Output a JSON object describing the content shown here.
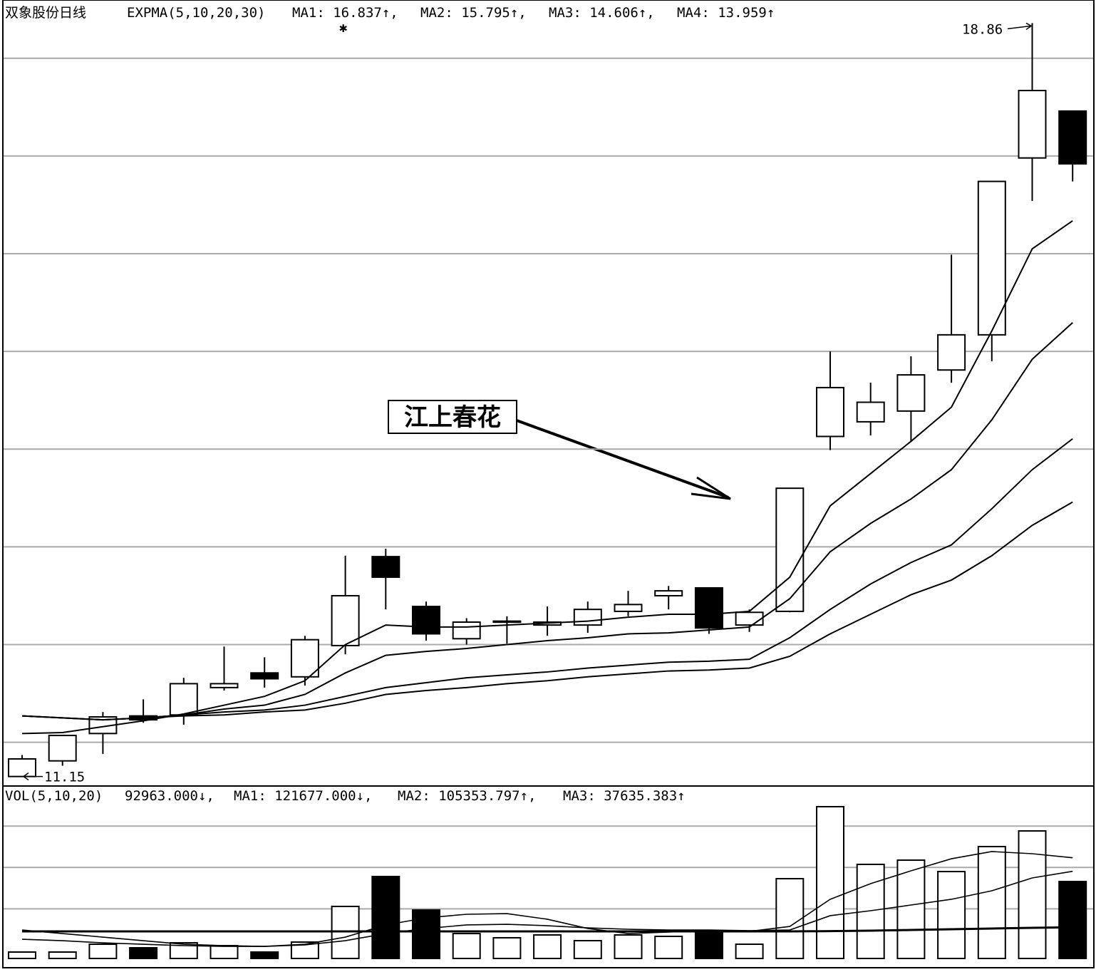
{
  "chart_data": [
    {
      "type": "candlestick",
      "title": "双象股份日线",
      "subtitle": "EXPMA(5,10,20,30)",
      "legend": [
        "MA1: 16.837↑,",
        "MA2: 15.795↑,",
        "MA3: 14.606↑,",
        "MA4: 13.959↑"
      ],
      "open": [
        11.15,
        11.31,
        11.59,
        11.77,
        11.78,
        12.06,
        12.21,
        12.17,
        12.49,
        13.4,
        12.89,
        12.56,
        12.73,
        12.7,
        12.7,
        12.84,
        13.0,
        13.08,
        12.7,
        12.84,
        14.63,
        14.78,
        14.89,
        15.31,
        15.67,
        17.48,
        17.96
      ],
      "high": [
        11.37,
        11.57,
        11.81,
        11.94,
        12.16,
        12.48,
        12.37,
        12.59,
        13.41,
        13.48,
        12.94,
        12.77,
        12.79,
        12.89,
        12.94,
        13.05,
        13.1,
        13.08,
        12.86,
        14.1,
        15.5,
        15.18,
        15.45,
        16.49,
        17.24,
        18.86,
        17.96
      ],
      "low": [
        11.15,
        11.26,
        11.38,
        11.7,
        11.68,
        12.03,
        12.06,
        12.08,
        12.4,
        12.86,
        12.54,
        12.5,
        12.51,
        12.59,
        12.62,
        12.79,
        12.86,
        12.61,
        12.63,
        12.83,
        14.49,
        14.64,
        14.58,
        15.18,
        15.4,
        17.04,
        17.24
      ],
      "close": [
        11.33,
        11.57,
        11.76,
        11.73,
        12.1,
        12.1,
        12.15,
        12.55,
        13.0,
        13.19,
        12.61,
        12.73,
        12.74,
        12.73,
        12.86,
        12.91,
        13.05,
        12.67,
        12.83,
        14.1,
        15.13,
        14.98,
        15.26,
        15.67,
        17.24,
        18.17,
        17.42
      ],
      "series": [
        {
          "values": [
            11.59,
            11.6,
            11.66,
            11.72,
            11.79,
            11.88,
            11.97,
            12.13,
            12.5,
            12.7,
            12.68,
            12.68,
            12.7,
            12.72,
            12.74,
            12.78,
            12.81,
            12.81,
            12.84,
            13.19,
            13.92,
            14.25,
            14.58,
            14.93,
            15.71,
            16.55,
            16.837
          ]
        },
        {
          "values": [
            11.77,
            11.75,
            11.73,
            11.75,
            11.78,
            11.84,
            11.88,
            11.99,
            12.21,
            12.39,
            12.43,
            12.46,
            12.5,
            12.54,
            12.57,
            12.61,
            12.62,
            12.65,
            12.68,
            12.97,
            13.45,
            13.74,
            13.99,
            14.29,
            14.8,
            15.42,
            15.795
          ]
        },
        {
          "values": [
            11.77,
            11.75,
            11.73,
            11.75,
            11.78,
            11.81,
            11.83,
            11.88,
            11.97,
            12.06,
            12.11,
            12.16,
            12.19,
            12.22,
            12.26,
            12.29,
            12.32,
            12.33,
            12.35,
            12.57,
            12.86,
            13.12,
            13.34,
            13.52,
            13.89,
            14.29,
            14.606
          ]
        },
        {
          "values": [
            11.77,
            11.75,
            11.73,
            11.75,
            11.77,
            11.78,
            11.81,
            11.83,
            11.9,
            11.99,
            12.03,
            12.06,
            12.1,
            12.13,
            12.17,
            12.2,
            12.23,
            12.24,
            12.26,
            12.38,
            12.61,
            12.81,
            13.01,
            13.16,
            13.41,
            13.72,
            13.959
          ]
        }
      ],
      "annotations": [
        {
          "text": "18.86",
          "value": 18.86
        },
        {
          "text": "11.15",
          "value": 11.15
        }
      ],
      "callout": "江上春花",
      "ylim": [
        11.06,
        19.06
      ],
      "ygrid": [
        11.5,
        12.5,
        13.5,
        14.5,
        15.5,
        16.5,
        17.5,
        18.5
      ]
    },
    {
      "type": "bar",
      "title": "VOL(5,10,20)",
      "legend": [
        "92963.000↓,",
        "MA1: 121677.000↓,",
        "MA2: 105353.797↑,",
        "MA3: 37635.383↑"
      ],
      "values": [
        7750,
        7750,
        17200,
        12900,
        18900,
        15500,
        7750,
        19800,
        62900,
        99000,
        58500,
        30100,
        25000,
        28400,
        21500,
        28400,
        26700,
        32700,
        17200,
        96400,
        183400,
        113700,
        118800,
        105000,
        135200,
        154100,
        92963
      ],
      "series": [
        {
          "values": [
            34400,
            30100,
            25800,
            21500,
            17200,
            15500,
            14600,
            17200,
            25800,
            40500,
            49100,
            53400,
            54200,
            47400,
            36200,
            30100,
            31900,
            33600,
            32700,
            38700,
            71500,
            90400,
            105900,
            120500,
            129200,
            126600,
            121677
          ]
        },
        {
          "values": [
            23200,
            21500,
            18900,
            17200,
            15500,
            14600,
            14600,
            16400,
            21500,
            30100,
            36200,
            40500,
            41300,
            39600,
            37000,
            35300,
            34400,
            34400,
            33600,
            34400,
            51700,
            57700,
            64600,
            71500,
            81800,
            97300,
            105353.797
          ]
        },
        {
          "values": [
            32700,
            32700,
            32700,
            32700,
            32700,
            32700,
            32700,
            32700,
            32700,
            32700,
            32700,
            32700,
            32700,
            32700,
            32700,
            32700,
            32700,
            32700,
            32700,
            32700,
            33000,
            33600,
            34400,
            35300,
            36200,
            37000,
            37635.383
          ]
        }
      ],
      "ylim": [
        0,
        208400
      ],
      "ygrid": [
        60000,
        110000,
        160000
      ]
    }
  ]
}
